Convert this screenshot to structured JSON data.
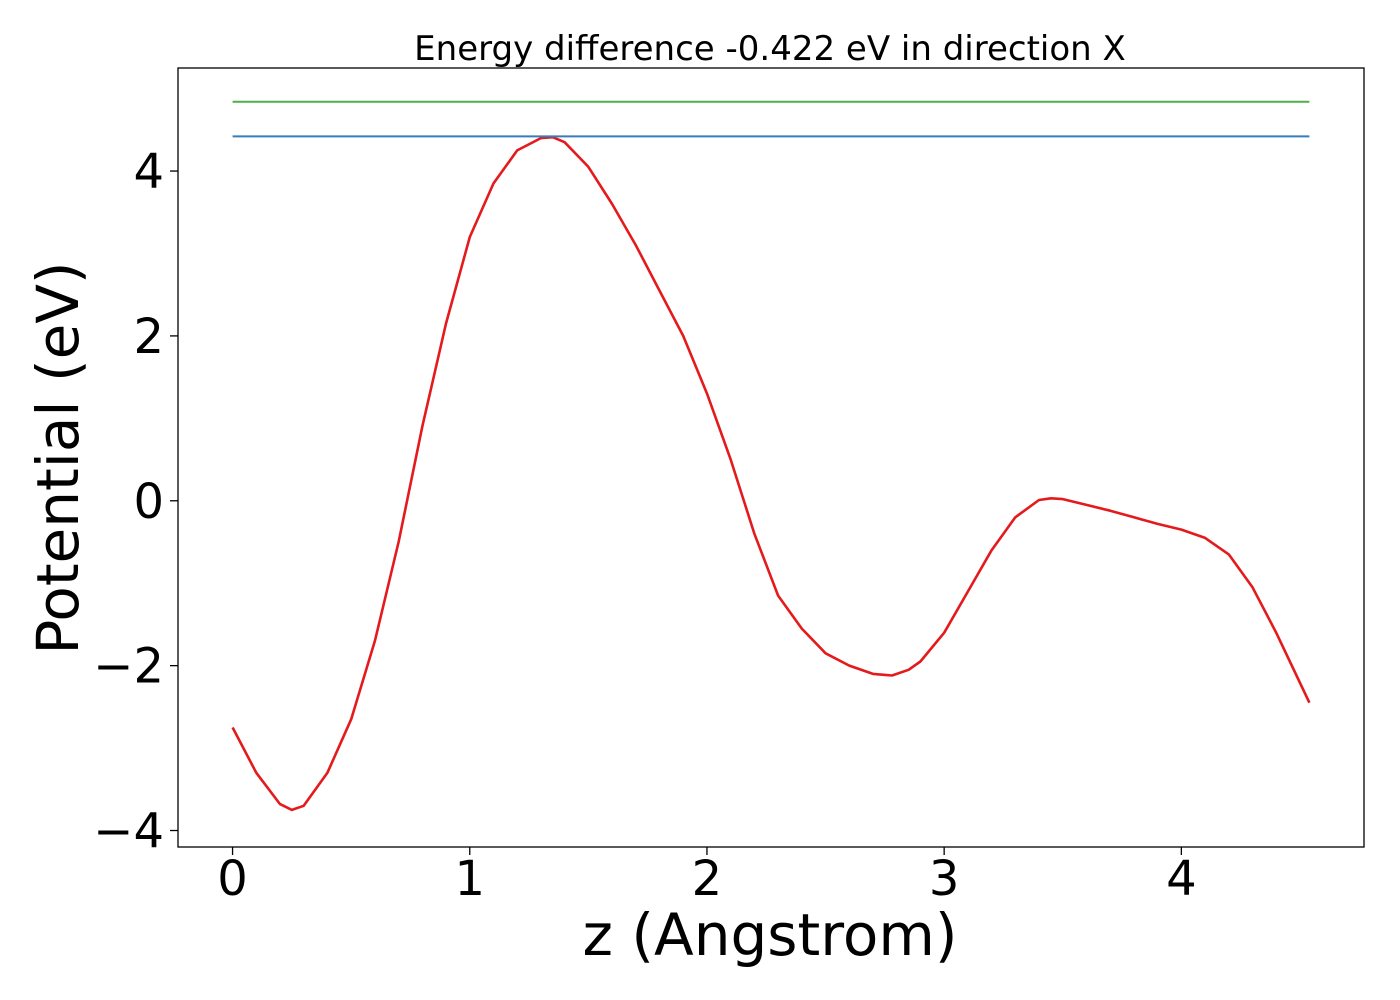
{
  "chart_data": {
    "type": "line",
    "title": "Energy difference -0.422 eV in direction X",
    "xlabel": "z (Angstrom)",
    "ylabel": "Potential (eV)",
    "xlim": [
      -0.23,
      4.77
    ],
    "ylim": [
      -4.2,
      5.25
    ],
    "xticks": [
      0,
      1,
      2,
      3,
      4
    ],
    "xtick_labels": [
      "0",
      "1",
      "2",
      "3",
      "4"
    ],
    "yticks": [
      -4,
      -2,
      0,
      2,
      4
    ],
    "ytick_labels": [
      "−4",
      "−2",
      "0",
      "2",
      "4"
    ],
    "grid": false,
    "series": [
      {
        "color": "#e41a1c",
        "x": [
          0,
          0.1,
          0.2,
          0.25,
          0.3,
          0.4,
          0.5,
          0.6,
          0.7,
          0.8,
          0.9,
          1.0,
          1.1,
          1.2,
          1.3,
          1.35,
          1.4,
          1.5,
          1.6,
          1.7,
          1.8,
          1.9,
          2.0,
          2.1,
          2.2,
          2.3,
          2.4,
          2.5,
          2.6,
          2.7,
          2.78,
          2.85,
          2.9,
          3.0,
          3.1,
          3.2,
          3.3,
          3.4,
          3.45,
          3.5,
          3.6,
          3.7,
          3.8,
          3.9,
          4.0,
          4.1,
          4.2,
          4.3,
          4.4,
          4.54
        ],
        "y": [
          -2.75,
          -3.3,
          -3.68,
          -3.75,
          -3.7,
          -3.3,
          -2.65,
          -1.7,
          -0.5,
          0.9,
          2.15,
          3.2,
          3.85,
          4.25,
          4.4,
          4.41,
          4.35,
          4.05,
          3.6,
          3.1,
          2.55,
          2.0,
          1.3,
          0.5,
          -0.4,
          -1.15,
          -1.55,
          -1.85,
          -2.0,
          -2.1,
          -2.12,
          -2.05,
          -1.95,
          -1.6,
          -1.1,
          -0.6,
          -0.2,
          0.01,
          0.03,
          0.02,
          -0.05,
          -0.12,
          -0.2,
          -0.28,
          -0.35,
          -0.45,
          -0.65,
          -1.05,
          -1.6,
          -2.45
        ]
      },
      {
        "color": "#377eb8",
        "x": [
          0,
          4.54
        ],
        "y": [
          4.42,
          4.42
        ]
      },
      {
        "color": "#4daf4a",
        "x": [
          0,
          4.54
        ],
        "y": [
          4.84,
          4.84
        ]
      }
    ]
  }
}
